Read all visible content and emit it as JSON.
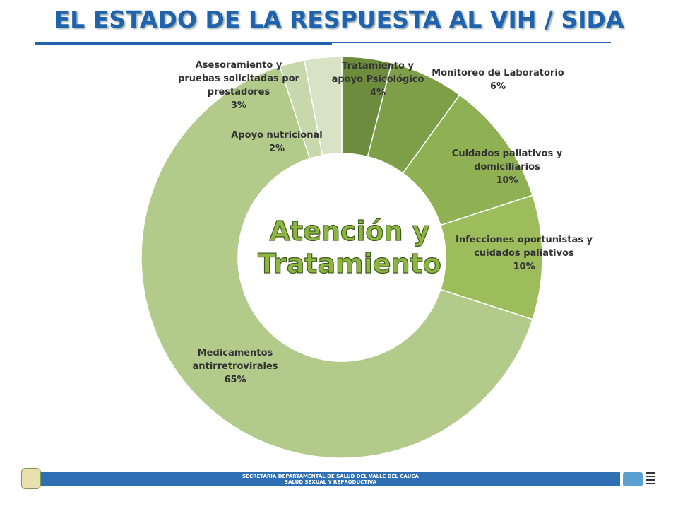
{
  "chart_data": {
    "type": "pie",
    "title": "EL ESTADO DE LA RESPUESTA AL VIH / SIDA",
    "center_label": [
      "Atención  y",
      "Tratamiento"
    ],
    "categories": [
      "Tratamiento y apoyo Psicológico",
      "Monitoreo de Laboratorio",
      "Cuidados paliativos y domiciliarios",
      "Infecciones oportunistas y cuidados paliativos",
      "Medicamentos antirretrovirales",
      "Apoyo nutricional",
      "Asesoramiento y pruebas solicitadas por prestadores"
    ],
    "values": [
      4,
      6,
      10,
      10,
      65,
      2,
      3
    ],
    "value_labels": [
      "4%",
      "6%",
      "10%",
      "10%",
      "65%",
      "2%",
      "3%"
    ],
    "colors": [
      "#6e8c3e",
      "#7f9e48",
      "#8fb053",
      "#9dbd5d",
      "#b2cb8b",
      "#c7d8ac",
      "#d7e3c4"
    ],
    "donut": true
  },
  "footer": {
    "lines": [
      "SECRETARIA DEPARTAMENTAL DE SALUD DEL VALLE DEL CAUCA",
      "SALUD SEXUAL Y REPRODUCTIVA"
    ]
  }
}
